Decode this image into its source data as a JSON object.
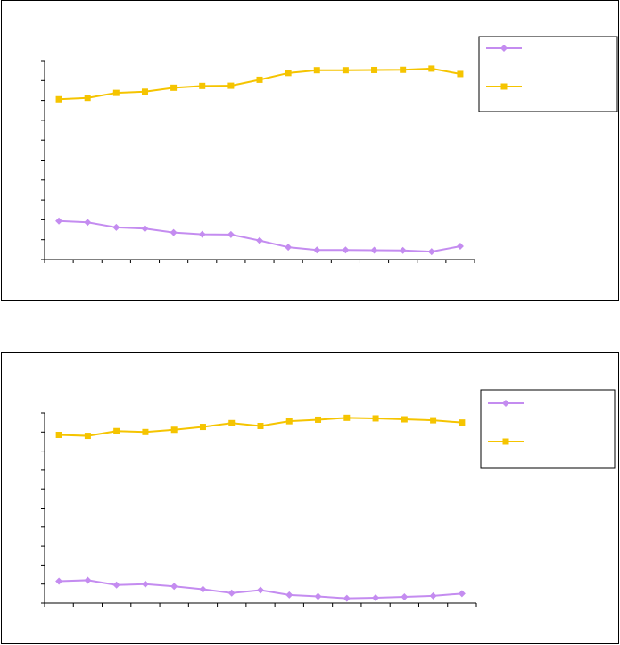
{
  "chart_data": [
    {
      "type": "line",
      "x": [
        1,
        2,
        3,
        4,
        5,
        6,
        7,
        8,
        9,
        10,
        11,
        12,
        13,
        14,
        15
      ],
      "ylim": [
        0,
        100
      ],
      "grid": false,
      "legend": "right",
      "series": [
        {
          "name": "",
          "color": "#c48cf0",
          "marker": "diamond",
          "values": [
            19.4,
            18.7,
            16.2,
            15.6,
            13.6,
            12.7,
            12.6,
            9.6,
            6.2,
            4.8,
            4.8,
            4.7,
            4.6,
            4.0,
            6.7
          ]
        },
        {
          "name": "",
          "color": "#f5c400",
          "marker": "square",
          "values": [
            80.6,
            81.3,
            83.8,
            84.4,
            86.4,
            87.3,
            87.4,
            90.4,
            93.8,
            95.2,
            95.2,
            95.3,
            95.4,
            96.0,
            93.3
          ]
        }
      ]
    },
    {
      "type": "line",
      "x": [
        1,
        2,
        3,
        4,
        5,
        6,
        7,
        8,
        9,
        10,
        11,
        12,
        13,
        14,
        15
      ],
      "ylim": [
        0,
        100
      ],
      "grid": false,
      "legend": "right",
      "series": [
        {
          "name": "",
          "color": "#c48cf0",
          "marker": "diamond",
          "values": [
            11.5,
            12.0,
            9.5,
            10.0,
            8.8,
            7.3,
            5.3,
            6.8,
            4.3,
            3.5,
            2.5,
            2.8,
            3.3,
            3.8,
            5.0
          ]
        },
        {
          "name": "",
          "color": "#f5c400",
          "marker": "square",
          "values": [
            88.5,
            88.0,
            90.5,
            90.0,
            91.2,
            92.7,
            94.7,
            93.2,
            95.7,
            96.5,
            97.5,
            97.2,
            96.7,
            96.2,
            95.0
          ]
        }
      ]
    }
  ]
}
